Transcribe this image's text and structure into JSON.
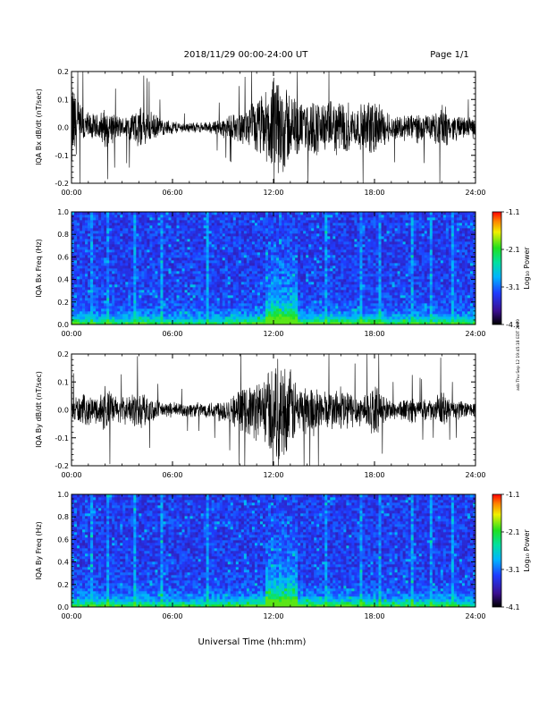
{
  "header": {
    "title": "2018/11/29  00:00-24:00 UT",
    "page": "Page 1/1"
  },
  "footer": {
    "xlabel": "Universal Time (hh:mm)",
    "timestamp": "asb Thu Sep 12 19:45:18 EDT 2019"
  },
  "chart_data": [
    {
      "type": "line",
      "title": "",
      "xlabel": "",
      "ylabel": "IQA Bx dB/dt (nT/sec)",
      "xlim": [
        0,
        24
      ],
      "ylim": [
        -0.2,
        0.2
      ],
      "xticks": [
        "00:00",
        "06:00",
        "12:00",
        "18:00",
        "24:00"
      ],
      "yticks": [
        "0.2",
        "0.1",
        "0.0",
        "-0.1",
        "-0.2"
      ],
      "series": [
        {
          "x": [
            0,
            0.5,
            1,
            1.5,
            2,
            2.5,
            3,
            3.5,
            4,
            4.5,
            5,
            5.5,
            6,
            6.5,
            7,
            7.5,
            8,
            8.5,
            9,
            9.5,
            10,
            10.5,
            11,
            11.5,
            12,
            12.5,
            13,
            13.5,
            14,
            14.5,
            15,
            15.5,
            16,
            16.5,
            17,
            17.5,
            18,
            18.5,
            19,
            19.5,
            20,
            20.5,
            21,
            21.5,
            22,
            22.5,
            23,
            23.5,
            24
          ],
          "amplitude": [
            0.2,
            0.1,
            0.06,
            0.05,
            0.08,
            0.06,
            0.04,
            0.06,
            0.08,
            0.07,
            0.05,
            0.03,
            0.03,
            0.02,
            0.02,
            0.02,
            0.02,
            0.03,
            0.04,
            0.05,
            0.06,
            0.08,
            0.12,
            0.14,
            0.2,
            0.2,
            0.15,
            0.1,
            0.1,
            0.12,
            0.1,
            0.1,
            0.12,
            0.1,
            0.08,
            0.1,
            0.12,
            0.08,
            0.05,
            0.05,
            0.06,
            0.06,
            0.05,
            0.05,
            0.1,
            0.05,
            0.05,
            0.04,
            0.04
          ]
        }
      ]
    },
    {
      "type": "heatmap",
      "title": "",
      "ylabel": "IQA Bx Freq (Hz)",
      "xlim": [
        0,
        24
      ],
      "ylim": [
        0,
        1.0
      ],
      "xticks": [
        "00:00",
        "06:00",
        "12:00",
        "18:00",
        "24:00"
      ],
      "yticks": [
        "1.0",
        "0.8",
        "0.6",
        "0.4",
        "0.2",
        "0.0"
      ],
      "colorbar": {
        "label": "Log₁₀ Power",
        "min": -4.1,
        "max": -1.1,
        "ticks": [
          "-1.1",
          "-2.1",
          "-3.1",
          "-4.1"
        ]
      }
    },
    {
      "type": "line",
      "title": "",
      "xlabel": "",
      "ylabel": "IQA By dB/dt (nT/sec)",
      "xlim": [
        0,
        24
      ],
      "ylim": [
        -0.2,
        0.2
      ],
      "xticks": [
        "00:00",
        "06:00",
        "12:00",
        "18:00",
        "24:00"
      ],
      "yticks": [
        "0.2",
        "0.1",
        "0.0",
        "-0.1",
        "-0.2"
      ],
      "series": [
        {
          "x": [
            0,
            0.5,
            1,
            1.5,
            2,
            2.5,
            3,
            3.5,
            4,
            4.5,
            5,
            5.5,
            6,
            6.5,
            7,
            7.5,
            8,
            8.5,
            9,
            9.5,
            10,
            10.5,
            11,
            11.5,
            12,
            12.5,
            13,
            13.5,
            14,
            14.5,
            15,
            15.5,
            16,
            16.5,
            17,
            17.5,
            18,
            18.5,
            19,
            19.5,
            20,
            20.5,
            21,
            21.5,
            22,
            22.5,
            23,
            23.5,
            24
          ],
          "amplitude": [
            0.05,
            0.06,
            0.06,
            0.05,
            0.1,
            0.06,
            0.05,
            0.06,
            0.08,
            0.06,
            0.04,
            0.03,
            0.03,
            0.03,
            0.03,
            0.03,
            0.03,
            0.04,
            0.05,
            0.06,
            0.08,
            0.1,
            0.12,
            0.14,
            0.2,
            0.2,
            0.16,
            0.1,
            0.1,
            0.1,
            0.08,
            0.08,
            0.1,
            0.08,
            0.06,
            0.08,
            0.1,
            0.06,
            0.04,
            0.04,
            0.05,
            0.05,
            0.04,
            0.04,
            0.08,
            0.04,
            0.04,
            0.03,
            0.03
          ]
        }
      ]
    },
    {
      "type": "heatmap",
      "title": "",
      "ylabel": "IQA By Freq (Hz)",
      "xlim": [
        0,
        24
      ],
      "ylim": [
        0,
        1.0
      ],
      "xticks": [
        "00:00",
        "06:00",
        "12:00",
        "18:00",
        "24:00"
      ],
      "yticks": [
        "1.0",
        "0.8",
        "0.6",
        "0.4",
        "0.2",
        "0.0"
      ],
      "colorbar": {
        "label": "Log₁₀ Power",
        "min": -4.1,
        "max": -1.1,
        "ticks": [
          "-1.1",
          "-2.1",
          "-3.1",
          "-4.1"
        ]
      }
    }
  ]
}
